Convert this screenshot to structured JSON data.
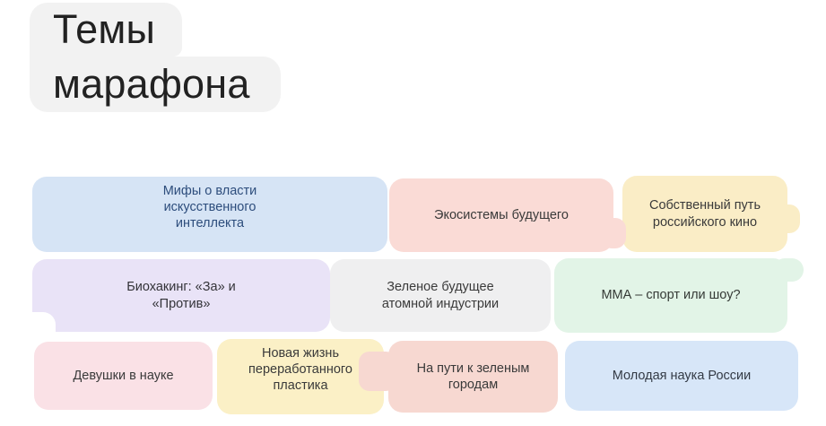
{
  "page": {
    "background_color": "#ffffff"
  },
  "title": {
    "full_text": "Темы марафона",
    "lines": [
      "Темы",
      "марафона"
    ],
    "highlight_color": "#f2f2f2",
    "text_color": "#222222"
  },
  "topics": [
    {
      "label": "Мифы о власти\nискусственного\nинтеллекта",
      "bg_color": "#d6e4f5",
      "text_color": "#2d4d7c"
    },
    {
      "label": "Экосистемы будущего",
      "bg_color": "#fadbd6",
      "text_color": "#3a3a3a"
    },
    {
      "label": "Собственный путь\nроссийского кино",
      "bg_color": "#faedc6",
      "text_color": "#3a3a3a"
    },
    {
      "label": "Биохакинг: «За» и\n«Против»",
      "bg_color": "#e9e3f7",
      "text_color": "#333338"
    },
    {
      "label": "Зеленое будущее\nатомной индустрии",
      "bg_color": "#efeff0",
      "text_color": "#3a3a3a"
    },
    {
      "label": "ММА – спорт или шоу?",
      "bg_color": "#e2f4e7",
      "text_color": "#353a36"
    },
    {
      "label": "Девушки в науке",
      "bg_color": "#fae1e6",
      "text_color": "#3a3a3a"
    },
    {
      "label": "Новая жизнь\nпереработанного\nпластика",
      "bg_color": "#fbf0c6",
      "text_color": "#3a3a3a"
    },
    {
      "label": "На пути к зеленым\nгородам",
      "bg_color": "#f7d8d1",
      "text_color": "#3a3a3a"
    },
    {
      "label": "Молодая наука России",
      "bg_color": "#d7e6f8",
      "text_color": "#333a45"
    }
  ]
}
